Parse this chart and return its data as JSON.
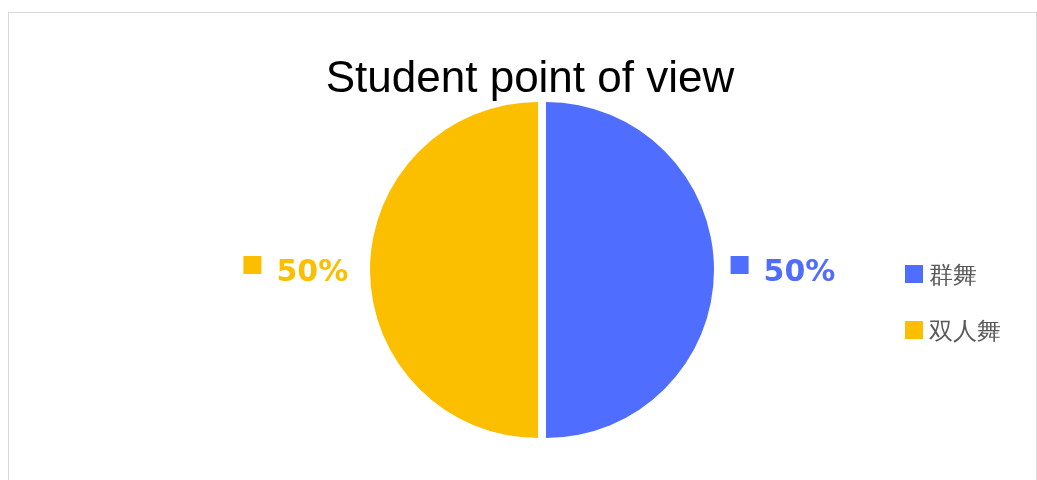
{
  "chart_data": {
    "type": "pie",
    "title": "Student point of view",
    "categories": [
      "群舞",
      "双人舞"
    ],
    "values": [
      50,
      50
    ],
    "value_labels": [
      "50%",
      "50%"
    ],
    "colors": [
      "#4f6dff",
      "#fbbf00"
    ],
    "legend": "right"
  }
}
